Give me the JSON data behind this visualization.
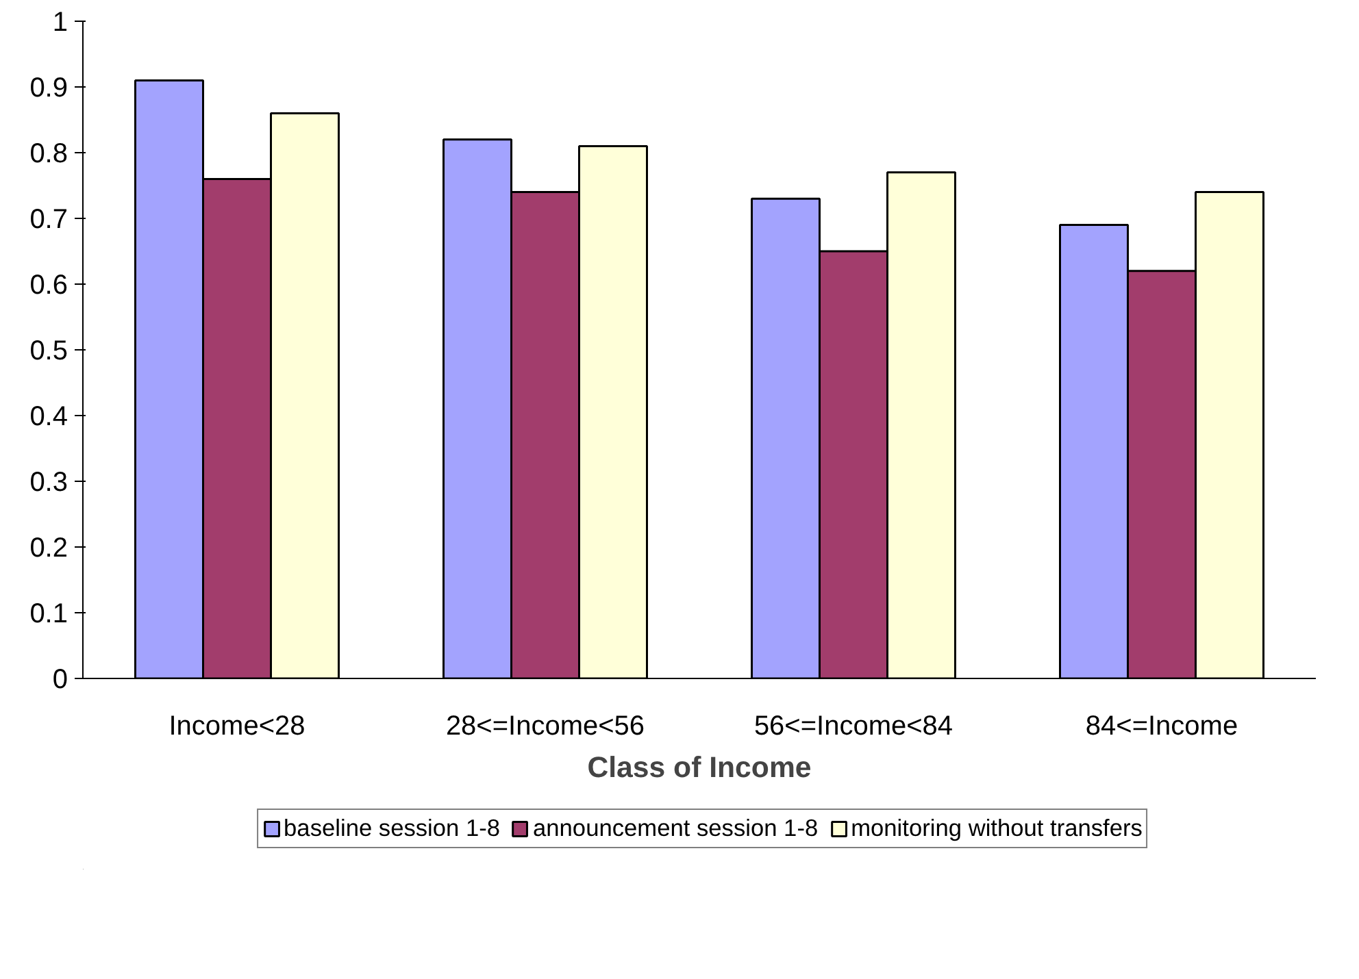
{
  "chart_data": {
    "type": "bar",
    "xlabel": "Class of Income",
    "categories": [
      "Income<28",
      "28<=Income<56",
      "56<=Income<84",
      "84<=Income"
    ],
    "series": [
      {
        "name": "baseline session 1-8",
        "color": "#a3a3fe",
        "values": [
          0.91,
          0.82,
          0.73,
          0.69
        ]
      },
      {
        "name": "announcement session 1-8",
        "color": "#a23d6c",
        "values": [
          0.76,
          0.74,
          0.65,
          0.62
        ]
      },
      {
        "name": "monitoring without transfers",
        "color": "#ffffd9",
        "values": [
          0.86,
          0.81,
          0.77,
          0.74
        ]
      }
    ],
    "ylim": [
      0,
      1
    ],
    "yticks": [
      0,
      0.1,
      0.2,
      0.3,
      0.4,
      0.5,
      0.6,
      0.7,
      0.8,
      0.9,
      1
    ],
    "grid": false,
    "legend": "bottom"
  }
}
